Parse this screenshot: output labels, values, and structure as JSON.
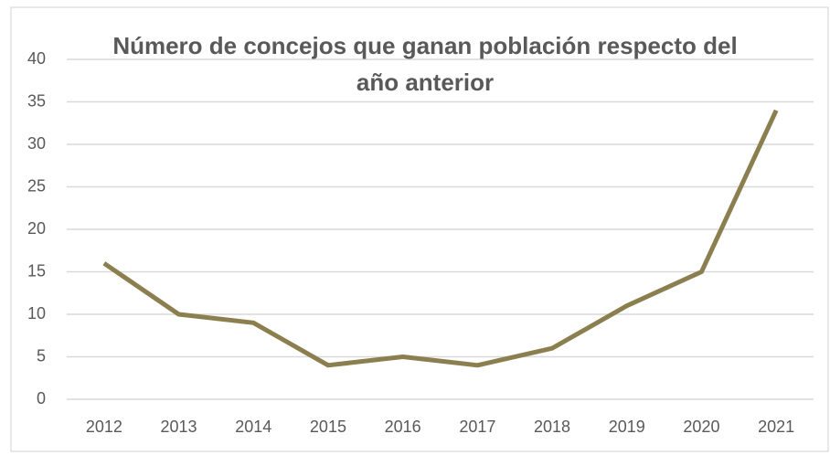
{
  "chart_data": {
    "type": "line",
    "title": "Número de concejos que ganan población respecto del año anterior",
    "categories": [
      "2012",
      "2013",
      "2014",
      "2015",
      "2016",
      "2017",
      "2018",
      "2019",
      "2020",
      "2021"
    ],
    "values": [
      16,
      10,
      9,
      4,
      5,
      4,
      6,
      11,
      15,
      34
    ],
    "color": "#8b7f4f",
    "ylim": [
      0,
      40
    ],
    "yticks": [
      0,
      5,
      10,
      15,
      20,
      25,
      30,
      35,
      40
    ],
    "grid": true
  }
}
